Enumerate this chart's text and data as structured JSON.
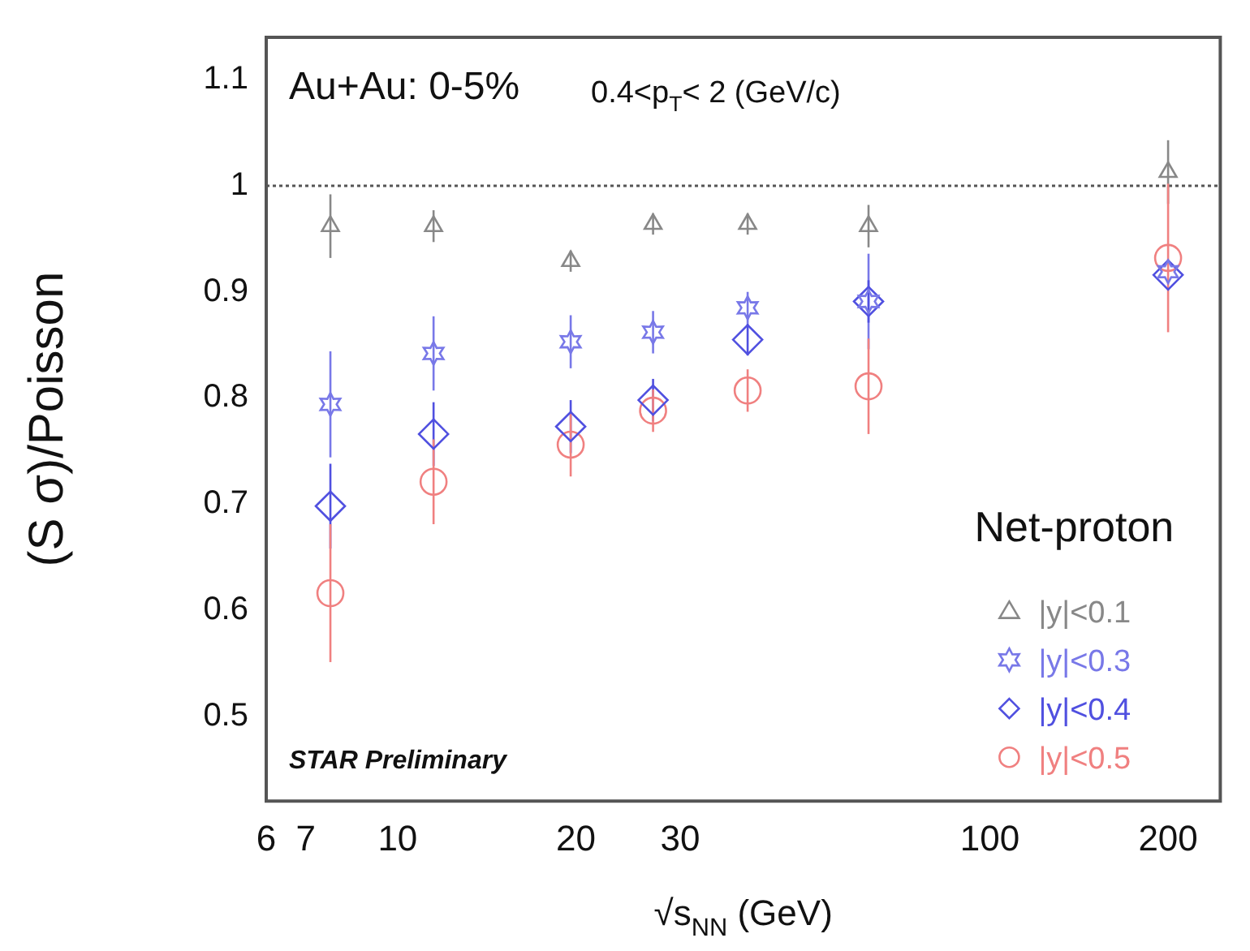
{
  "chart_data": {
    "type": "scatter",
    "ylabel": "(S σ)/Poisson",
    "xlabel": "√s$_{NN}$ (GeV)",
    "legend_title": "Net-proton",
    "annotations": [
      "Au+Au: 0-5%",
      "0.4<p$_{T}$< 2 (GeV/c)",
      "STAR Preliminary"
    ],
    "x": [
      7.7,
      11.5,
      19.6,
      27,
      39,
      62.4,
      200
    ],
    "series": [
      {
        "name": "|y|<0.1",
        "color": "#888888",
        "marker": "triangle",
        "values": [
          0.962,
          0.962,
          0.929,
          0.964,
          0.964,
          0.962,
          1.013
        ],
        "errors": [
          0.03,
          0.015,
          0.01,
          0.01,
          0.01,
          0.02,
          0.03
        ]
      },
      {
        "name": "|y|<0.3",
        "color": "#7878e8",
        "values": [
          0.794,
          0.842,
          0.853,
          0.862,
          0.885,
          0.891,
          0.919
        ],
        "errors": [
          0.05,
          0.035,
          0.025,
          0.02,
          0.015,
          0.045,
          null
        ]
      },
      {
        "name": "|y|<0.4",
        "color": "#5050e0",
        "marker": "diamond",
        "values": [
          0.698,
          0.766,
          0.773,
          0.798,
          0.855,
          0.891,
          0.916
        ],
        "errors": [
          0.04,
          0.03,
          0.025,
          0.02,
          0.015,
          0.02,
          null
        ]
      },
      {
        "name": "|y|<0.5",
        "color": "#f08080",
        "marker": "circle",
        "values": [
          0.616,
          0.721,
          0.756,
          0.788,
          0.807,
          0.811,
          0.932
        ],
        "errors": [
          0.065,
          0.04,
          0.03,
          0.02,
          0.02,
          0.045,
          0.07
        ]
      }
    ],
    "log": "x",
    "xlim": [
      6,
      245
    ],
    "xticks": [
      6,
      7,
      10,
      20,
      30,
      100,
      200
    ],
    "ylim": [
      0.42,
      1.14
    ],
    "yticks": [
      0.5,
      0.6,
      0.7,
      0.8,
      0.9,
      1,
      1.1
    ],
    "ref_lines": [
      {
        "axis": "y",
        "value": 1,
        "line_style": "dotted",
        "color": "#555555"
      }
    ],
    "grid": false,
    "legend": "bottom right"
  }
}
